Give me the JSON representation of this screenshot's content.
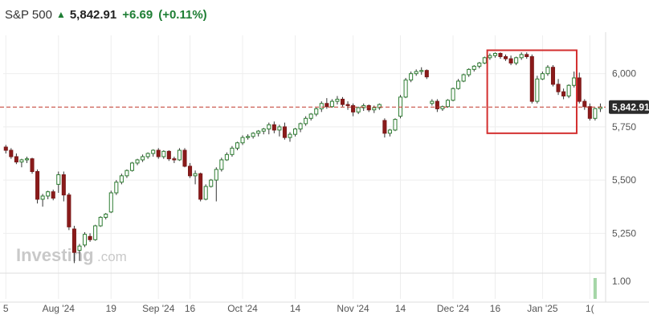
{
  "header": {
    "symbol": "S&P 500",
    "price": "5,842.91",
    "change": "+6.69",
    "change_pct": "(+0.11%)",
    "direction_icon": "up-arrow-icon"
  },
  "colors": {
    "up": "#2e7d32",
    "up_fill": "#ffffff",
    "down": "#7b1a1a",
    "down_fill": "#8b1a1a",
    "wick": "#333333",
    "grid": "#eeeeee",
    "ref_line": "#c0392b",
    "highlight_box": "#d32f2f",
    "price_tag": "#2b2b2b",
    "volume_bar": "#a5d6a7"
  },
  "watermark": {
    "brand": "Investing",
    "suffix": ".com"
  },
  "current_price_label": "5,842.91",
  "volume_axis_label": "1.00",
  "chart_data": {
    "type": "candlestick",
    "title": "S&P 500",
    "reference_price": 5842.91,
    "ylim": [
      5070,
      6180
    ],
    "y_ticks": [
      {
        "value": 5250,
        "label": "5,250"
      },
      {
        "value": 5500,
        "label": "5,500"
      },
      {
        "value": 5750,
        "label": "5,750"
      },
      {
        "value": 6000,
        "label": "6,000"
      }
    ],
    "x_ticks": [
      {
        "index": 0,
        "label": "5"
      },
      {
        "index": 10,
        "label": "Aug '24"
      },
      {
        "index": 20,
        "label": "19"
      },
      {
        "index": 29,
        "label": "Sep '24"
      },
      {
        "index": 35,
        "label": "16"
      },
      {
        "index": 45,
        "label": "Oct '24"
      },
      {
        "index": 55,
        "label": "14"
      },
      {
        "index": 66,
        "label": "Nov '24"
      },
      {
        "index": 75,
        "label": "14"
      },
      {
        "index": 85,
        "label": "Dec '24"
      },
      {
        "index": 93,
        "label": "16"
      },
      {
        "index": 102,
        "label": "Jan '25"
      },
      {
        "index": 111,
        "label": "1("
      }
    ],
    "highlight_range": {
      "start_index": 92,
      "end_index": 108,
      "low": 5720,
      "high": 6110
    },
    "candles": [
      [
        5655,
        5665,
        5625,
        5640
      ],
      [
        5640,
        5650,
        5600,
        5610
      ],
      [
        5610,
        5625,
        5575,
        5585
      ],
      [
        5585,
        5600,
        5560,
        5595
      ],
      [
        5595,
        5610,
        5580,
        5600
      ],
      [
        5600,
        5605,
        5530,
        5540
      ],
      [
        5540,
        5550,
        5390,
        5410
      ],
      [
        5410,
        5435,
        5375,
        5425
      ],
      [
        5425,
        5450,
        5410,
        5445
      ],
      [
        5445,
        5455,
        5405,
        5415
      ],
      [
        5480,
        5540,
        5440,
        5525
      ],
      [
        5525,
        5540,
        5400,
        5430
      ],
      [
        5430,
        5440,
        5265,
        5280
      ],
      [
        5270,
        5285,
        5110,
        5160
      ],
      [
        5170,
        5200,
        5120,
        5190
      ],
      [
        5195,
        5255,
        5185,
        5245
      ],
      [
        5235,
        5250,
        5210,
        5220
      ],
      [
        5220,
        5290,
        5215,
        5285
      ],
      [
        5285,
        5330,
        5280,
        5325
      ],
      [
        5325,
        5345,
        5315,
        5340
      ],
      [
        5350,
        5450,
        5345,
        5440
      ],
      [
        5440,
        5500,
        5430,
        5490
      ],
      [
        5490,
        5530,
        5480,
        5520
      ],
      [
        5520,
        5550,
        5510,
        5545
      ],
      [
        5545,
        5585,
        5540,
        5580
      ],
      [
        5580,
        5600,
        5570,
        5595
      ],
      [
        5595,
        5620,
        5585,
        5610
      ],
      [
        5610,
        5630,
        5600,
        5625
      ],
      [
        5625,
        5645,
        5610,
        5640
      ],
      [
        5640,
        5650,
        5600,
        5610
      ],
      [
        5610,
        5640,
        5600,
        5635
      ],
      [
        5635,
        5640,
        5590,
        5600
      ],
      [
        5600,
        5610,
        5580,
        5595
      ],
      [
        5595,
        5650,
        5590,
        5640
      ],
      [
        5640,
        5650,
        5560,
        5565
      ],
      [
        5565,
        5580,
        5510,
        5520
      ],
      [
        5520,
        5545,
        5480,
        5530
      ],
      [
        5530,
        5535,
        5400,
        5410
      ],
      [
        5410,
        5480,
        5405,
        5470
      ],
      [
        5470,
        5505,
        5465,
        5500
      ],
      [
        5500,
        5560,
        5400,
        5550
      ],
      [
        5550,
        5605,
        5540,
        5595
      ],
      [
        5595,
        5630,
        5590,
        5620
      ],
      [
        5620,
        5660,
        5610,
        5650
      ],
      [
        5650,
        5680,
        5640,
        5675
      ],
      [
        5675,
        5710,
        5665,
        5700
      ],
      [
        5700,
        5715,
        5690,
        5705
      ],
      [
        5705,
        5725,
        5695,
        5720
      ],
      [
        5720,
        5735,
        5705,
        5730
      ],
      [
        5730,
        5745,
        5715,
        5740
      ],
      [
        5740,
        5770,
        5715,
        5760
      ],
      [
        5760,
        5775,
        5720,
        5735
      ],
      [
        5735,
        5760,
        5705,
        5750
      ],
      [
        5750,
        5770,
        5690,
        5700
      ],
      [
        5700,
        5725,
        5680,
        5715
      ],
      [
        5715,
        5745,
        5705,
        5740
      ],
      [
        5740,
        5770,
        5725,
        5765
      ],
      [
        5765,
        5800,
        5755,
        5790
      ],
      [
        5790,
        5815,
        5780,
        5810
      ],
      [
        5810,
        5840,
        5800,
        5835
      ],
      [
        5835,
        5870,
        5820,
        5860
      ],
      [
        5860,
        5885,
        5835,
        5845
      ],
      [
        5845,
        5880,
        5840,
        5870
      ],
      [
        5870,
        5895,
        5855,
        5880
      ],
      [
        5880,
        5890,
        5845,
        5855
      ],
      [
        5855,
        5870,
        5830,
        5850
      ],
      [
        5850,
        5860,
        5800,
        5820
      ],
      [
        5820,
        5845,
        5810,
        5840
      ],
      [
        5840,
        5860,
        5825,
        5850
      ],
      [
        5850,
        5855,
        5820,
        5830
      ],
      [
        5830,
        5850,
        5815,
        5840
      ],
      [
        5840,
        5860,
        5830,
        5855
      ],
      [
        5780,
        5790,
        5700,
        5720
      ],
      [
        5720,
        5740,
        5705,
        5735
      ],
      [
        5735,
        5790,
        5730,
        5785
      ],
      [
        5800,
        5900,
        5790,
        5890
      ],
      [
        5890,
        5980,
        5885,
        5970
      ],
      [
        5970,
        6010,
        5960,
        6000
      ],
      [
        6000,
        6020,
        5990,
        6010
      ],
      [
        6010,
        6030,
        5995,
        6015
      ],
      [
        6015,
        6020,
        5975,
        5985
      ],
      [
        5860,
        5880,
        5850,
        5870
      ],
      [
        5870,
        5880,
        5820,
        5835
      ],
      [
        5835,
        5850,
        5825,
        5845
      ],
      [
        5845,
        5880,
        5840,
        5875
      ],
      [
        5875,
        5935,
        5870,
        5930
      ],
      [
        5930,
        5975,
        5925,
        5965
      ],
      [
        5965,
        6000,
        5960,
        5995
      ],
      [
        5995,
        6025,
        5985,
        6020
      ],
      [
        6020,
        6040,
        6010,
        6035
      ],
      [
        6035,
        6055,
        6025,
        6050
      ],
      [
        6050,
        6080,
        6045,
        6075
      ],
      [
        6075,
        6095,
        6065,
        6085
      ],
      [
        6085,
        6100,
        6075,
        6095
      ],
      [
        6095,
        6100,
        6070,
        6080
      ],
      [
        6080,
        6090,
        6060,
        6070
      ],
      [
        6070,
        6085,
        6040,
        6050
      ],
      [
        6050,
        6080,
        6040,
        6075
      ],
      [
        6075,
        6100,
        6065,
        6090
      ],
      [
        6090,
        6100,
        6070,
        6080
      ],
      [
        6080,
        6090,
        5860,
        5870
      ],
      [
        5870,
        5990,
        5860,
        5975
      ],
      [
        5975,
        6010,
        5970,
        6000
      ],
      [
        6000,
        6040,
        5990,
        6030
      ],
      [
        6030,
        6040,
        5940,
        5950
      ],
      [
        5950,
        5975,
        5900,
        5915
      ],
      [
        5915,
        5930,
        5880,
        5895
      ],
      [
        5895,
        5950,
        5885,
        5945
      ],
      [
        5945,
        6010,
        5935,
        5980
      ],
      [
        5980,
        6005,
        5860,
        5870
      ],
      [
        5870,
        5880,
        5830,
        5845
      ],
      [
        5845,
        5860,
        5780,
        5790
      ],
      [
        5790,
        5840,
        5780,
        5836
      ],
      [
        5836,
        5860,
        5820,
        5843
      ]
    ],
    "volume": [
      {
        "index": 112,
        "value": 1.0
      }
    ]
  }
}
